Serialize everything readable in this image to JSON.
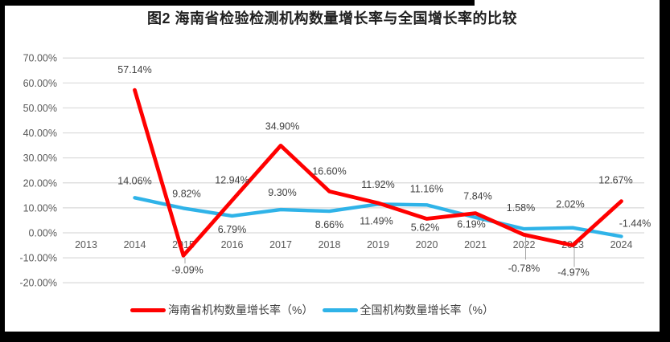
{
  "page": {
    "background": "#000000",
    "panel_background": "#FFFFFF"
  },
  "chart_data": {
    "type": "line",
    "title": "图2 海南省检验检测机构数量增长率与全国增长率的比较",
    "categories": [
      "2013",
      "2014",
      "2015",
      "2016",
      "2017",
      "2018",
      "2019",
      "2020",
      "2021",
      "2022",
      "2023",
      "2024"
    ],
    "series": [
      {
        "name": "海南省机构数量增长率（%）",
        "color": "#FF0000",
        "values": [
          null,
          57.14,
          -9.09,
          12.94,
          34.9,
          16.6,
          11.92,
          5.62,
          7.84,
          -0.78,
          -4.97,
          12.67
        ],
        "labels": [
          null,
          "57.14%",
          "-9.09%",
          "12.94%",
          "34.90%",
          "16.60%",
          "11.92%",
          "5.62%",
          "7.84%",
          "-0.78%",
          "-4.97%",
          "12.67%"
        ]
      },
      {
        "name": "全国机构数量增长率（%）",
        "color": "#2FB3E8",
        "values": [
          null,
          14.06,
          9.82,
          6.79,
          9.3,
          8.66,
          11.49,
          11.16,
          6.19,
          1.58,
          2.02,
          -1.44
        ],
        "labels": [
          null,
          "14.06%",
          "9.82%",
          "6.79%",
          "9.30%",
          "8.66%",
          "11.49%",
          "11.16%",
          "6.19%",
          "1.58%",
          "2.02%",
          "-1.44%"
        ]
      }
    ],
    "y_axis": {
      "min": -20,
      "max": 70,
      "step": 10,
      "tick_labels": [
        "70.00%",
        "60.00%",
        "50.00%",
        "40.00%",
        "30.00%",
        "20.00%",
        "10.00%",
        "0.00%",
        "-10.00%",
        "-20.00%"
      ]
    },
    "x_axis": {
      "tick_labels": [
        "2013",
        "2014",
        "2015",
        "2016",
        "2017",
        "2018",
        "2019",
        "2020",
        "2021",
        "2022",
        "2023",
        "2024"
      ]
    },
    "grid": true,
    "legend_position": "bottom",
    "colors": {
      "gridline": "#D9D9D9",
      "axis_text": "#595959",
      "data_label": "#404040",
      "leader_line": "#A6A6A6"
    }
  }
}
